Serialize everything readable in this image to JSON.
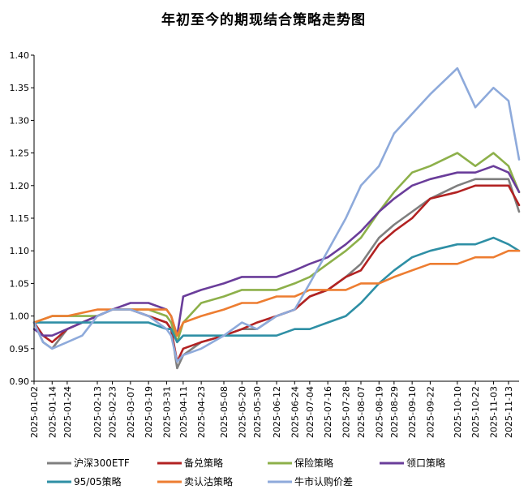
{
  "chart_data": {
    "type": "line",
    "title": "年初至今的期现结合策略走势图",
    "xlabel": "",
    "ylabel": "",
    "ylim": [
      0.9,
      1.4
    ],
    "yticks": [
      "0.90",
      "0.95",
      "1.00",
      "1.05",
      "1.10",
      "1.15",
      "1.20",
      "1.25",
      "1.30",
      "1.35",
      "1.40"
    ],
    "x_range": [
      "2025-01-02",
      "2025-11-20"
    ],
    "xticks": [
      "2025-01-02",
      "2025-01-14",
      "2025-01-24",
      "2025-02-13",
      "2025-02-23",
      "2025-03-07",
      "2025-03-19",
      "2025-03-31",
      "2025-04-11",
      "2025-04-23",
      "2025-05-08",
      "2025-05-20",
      "2025-05-30",
      "2025-06-12",
      "2025-06-24",
      "2025-07-04",
      "2025-07-16",
      "2025-07-28",
      "2025-08-07",
      "2025-08-19",
      "2025-08-29",
      "2025-09-10",
      "2025-09-22",
      "2025-10-10",
      "2025-10-22",
      "2025-11-03",
      "2025-11-13"
    ],
    "grid": false,
    "legend_position": "bottom",
    "series": [
      {
        "name": "沪深300ETF",
        "color": "#7f7f7f",
        "values": [
          [
            "2025-01-02",
            0.99
          ],
          [
            "2025-01-08",
            0.96
          ],
          [
            "2025-01-14",
            0.95
          ],
          [
            "2025-01-24",
            0.98
          ],
          [
            "2025-02-03",
            0.99
          ],
          [
            "2025-02-13",
            1.0
          ],
          [
            "2025-02-23",
            1.01
          ],
          [
            "2025-03-07",
            1.01
          ],
          [
            "2025-03-19",
            1.0
          ],
          [
            "2025-03-31",
            0.99
          ],
          [
            "2025-04-03",
            0.98
          ],
          [
            "2025-04-07",
            0.92
          ],
          [
            "2025-04-11",
            0.94
          ],
          [
            "2025-04-23",
            0.96
          ],
          [
            "2025-05-08",
            0.97
          ],
          [
            "2025-05-20",
            0.98
          ],
          [
            "2025-05-30",
            0.98
          ],
          [
            "2025-06-12",
            1.0
          ],
          [
            "2025-06-24",
            1.01
          ],
          [
            "2025-07-04",
            1.03
          ],
          [
            "2025-07-16",
            1.04
          ],
          [
            "2025-07-28",
            1.06
          ],
          [
            "2025-08-07",
            1.08
          ],
          [
            "2025-08-19",
            1.12
          ],
          [
            "2025-08-29",
            1.14
          ],
          [
            "2025-09-10",
            1.16
          ],
          [
            "2025-09-22",
            1.18
          ],
          [
            "2025-10-10",
            1.2
          ],
          [
            "2025-10-22",
            1.21
          ],
          [
            "2025-11-03",
            1.21
          ],
          [
            "2025-11-13",
            1.21
          ],
          [
            "2025-11-20",
            1.16
          ]
        ]
      },
      {
        "name": "备兑策略",
        "color": "#b22222",
        "values": [
          [
            "2025-01-02",
            0.99
          ],
          [
            "2025-01-08",
            0.97
          ],
          [
            "2025-01-14",
            0.96
          ],
          [
            "2025-01-24",
            0.98
          ],
          [
            "2025-02-03",
            0.99
          ],
          [
            "2025-02-13",
            1.0
          ],
          [
            "2025-02-23",
            1.01
          ],
          [
            "2025-03-07",
            1.01
          ],
          [
            "2025-03-19",
            1.0
          ],
          [
            "2025-03-31",
            0.99
          ],
          [
            "2025-04-03",
            0.98
          ],
          [
            "2025-04-07",
            0.93
          ],
          [
            "2025-04-11",
            0.95
          ],
          [
            "2025-04-23",
            0.96
          ],
          [
            "2025-05-08",
            0.97
          ],
          [
            "2025-05-20",
            0.98
          ],
          [
            "2025-05-30",
            0.99
          ],
          [
            "2025-06-12",
            1.0
          ],
          [
            "2025-06-24",
            1.01
          ],
          [
            "2025-07-04",
            1.03
          ],
          [
            "2025-07-16",
            1.04
          ],
          [
            "2025-07-28",
            1.06
          ],
          [
            "2025-08-07",
            1.07
          ],
          [
            "2025-08-19",
            1.11
          ],
          [
            "2025-08-29",
            1.13
          ],
          [
            "2025-09-10",
            1.15
          ],
          [
            "2025-09-22",
            1.18
          ],
          [
            "2025-10-10",
            1.19
          ],
          [
            "2025-10-22",
            1.2
          ],
          [
            "2025-11-03",
            1.2
          ],
          [
            "2025-11-13",
            1.2
          ],
          [
            "2025-11-20",
            1.17
          ]
        ]
      },
      {
        "name": "保险策略",
        "color": "#8db04a",
        "values": [
          [
            "2025-01-02",
            0.99
          ],
          [
            "2025-01-14",
            1.0
          ],
          [
            "2025-01-24",
            1.0
          ],
          [
            "2025-02-13",
            1.0
          ],
          [
            "2025-02-23",
            1.01
          ],
          [
            "2025-03-07",
            1.01
          ],
          [
            "2025-03-19",
            1.01
          ],
          [
            "2025-03-31",
            1.0
          ],
          [
            "2025-04-03",
            0.99
          ],
          [
            "2025-04-07",
            0.96
          ],
          [
            "2025-04-11",
            0.99
          ],
          [
            "2025-04-23",
            1.02
          ],
          [
            "2025-05-08",
            1.03
          ],
          [
            "2025-05-20",
            1.04
          ],
          [
            "2025-05-30",
            1.04
          ],
          [
            "2025-06-12",
            1.04
          ],
          [
            "2025-06-24",
            1.05
          ],
          [
            "2025-07-04",
            1.06
          ],
          [
            "2025-07-16",
            1.08
          ],
          [
            "2025-07-28",
            1.1
          ],
          [
            "2025-08-07",
            1.12
          ],
          [
            "2025-08-19",
            1.16
          ],
          [
            "2025-08-29",
            1.19
          ],
          [
            "2025-09-10",
            1.22
          ],
          [
            "2025-09-22",
            1.23
          ],
          [
            "2025-10-10",
            1.25
          ],
          [
            "2025-10-22",
            1.23
          ],
          [
            "2025-11-03",
            1.25
          ],
          [
            "2025-11-13",
            1.23
          ],
          [
            "2025-11-20",
            1.19
          ]
        ]
      },
      {
        "name": "领口策略",
        "color": "#6a3d9a",
        "values": [
          [
            "2025-01-02",
            0.98
          ],
          [
            "2025-01-08",
            0.97
          ],
          [
            "2025-01-14",
            0.97
          ],
          [
            "2025-01-24",
            0.98
          ],
          [
            "2025-02-13",
            1.0
          ],
          [
            "2025-02-23",
            1.01
          ],
          [
            "2025-03-07",
            1.02
          ],
          [
            "2025-03-19",
            1.02
          ],
          [
            "2025-03-31",
            1.01
          ],
          [
            "2025-04-03",
            1.0
          ],
          [
            "2025-04-07",
            0.97
          ],
          [
            "2025-04-11",
            1.03
          ],
          [
            "2025-04-23",
            1.04
          ],
          [
            "2025-05-08",
            1.05
          ],
          [
            "2025-05-20",
            1.06
          ],
          [
            "2025-05-30",
            1.06
          ],
          [
            "2025-06-12",
            1.06
          ],
          [
            "2025-06-24",
            1.07
          ],
          [
            "2025-07-04",
            1.08
          ],
          [
            "2025-07-16",
            1.09
          ],
          [
            "2025-07-28",
            1.11
          ],
          [
            "2025-08-07",
            1.13
          ],
          [
            "2025-08-19",
            1.16
          ],
          [
            "2025-08-29",
            1.18
          ],
          [
            "2025-09-10",
            1.2
          ],
          [
            "2025-09-22",
            1.21
          ],
          [
            "2025-10-10",
            1.22
          ],
          [
            "2025-10-22",
            1.22
          ],
          [
            "2025-11-03",
            1.23
          ],
          [
            "2025-11-13",
            1.22
          ],
          [
            "2025-11-20",
            1.19
          ]
        ]
      },
      {
        "name": "95/05策略",
        "color": "#2e8fa5",
        "values": [
          [
            "2025-01-02",
            0.99
          ],
          [
            "2025-01-14",
            0.99
          ],
          [
            "2025-01-24",
            0.99
          ],
          [
            "2025-02-13",
            0.99
          ],
          [
            "2025-02-23",
            0.99
          ],
          [
            "2025-03-07",
            0.99
          ],
          [
            "2025-03-19",
            0.99
          ],
          [
            "2025-03-31",
            0.98
          ],
          [
            "2025-04-03",
            0.98
          ],
          [
            "2025-04-07",
            0.96
          ],
          [
            "2025-04-11",
            0.97
          ],
          [
            "2025-04-23",
            0.97
          ],
          [
            "2025-05-08",
            0.97
          ],
          [
            "2025-05-20",
            0.97
          ],
          [
            "2025-05-30",
            0.97
          ],
          [
            "2025-06-12",
            0.97
          ],
          [
            "2025-06-24",
            0.98
          ],
          [
            "2025-07-04",
            0.98
          ],
          [
            "2025-07-16",
            0.99
          ],
          [
            "2025-07-28",
            1.0
          ],
          [
            "2025-08-07",
            1.02
          ],
          [
            "2025-08-19",
            1.05
          ],
          [
            "2025-08-29",
            1.07
          ],
          [
            "2025-09-10",
            1.09
          ],
          [
            "2025-09-22",
            1.1
          ],
          [
            "2025-10-10",
            1.11
          ],
          [
            "2025-10-22",
            1.11
          ],
          [
            "2025-11-03",
            1.12
          ],
          [
            "2025-11-13",
            1.11
          ],
          [
            "2025-11-20",
            1.1
          ]
        ]
      },
      {
        "name": "卖认沽策略",
        "color": "#ed7d31",
        "values": [
          [
            "2025-01-02",
            0.99
          ],
          [
            "2025-01-14",
            1.0
          ],
          [
            "2025-01-24",
            1.0
          ],
          [
            "2025-02-13",
            1.01
          ],
          [
            "2025-02-23",
            1.01
          ],
          [
            "2025-03-07",
            1.01
          ],
          [
            "2025-03-19",
            1.01
          ],
          [
            "2025-03-31",
            1.01
          ],
          [
            "2025-04-03",
            1.0
          ],
          [
            "2025-04-07",
            0.97
          ],
          [
            "2025-04-11",
            0.99
          ],
          [
            "2025-04-23",
            1.0
          ],
          [
            "2025-05-08",
            1.01
          ],
          [
            "2025-05-20",
            1.02
          ],
          [
            "2025-05-30",
            1.02
          ],
          [
            "2025-06-12",
            1.03
          ],
          [
            "2025-06-24",
            1.03
          ],
          [
            "2025-07-04",
            1.04
          ],
          [
            "2025-07-16",
            1.04
          ],
          [
            "2025-07-28",
            1.04
          ],
          [
            "2025-08-07",
            1.05
          ],
          [
            "2025-08-19",
            1.05
          ],
          [
            "2025-08-29",
            1.06
          ],
          [
            "2025-09-10",
            1.07
          ],
          [
            "2025-09-22",
            1.08
          ],
          [
            "2025-10-10",
            1.08
          ],
          [
            "2025-10-22",
            1.09
          ],
          [
            "2025-11-03",
            1.09
          ],
          [
            "2025-11-13",
            1.1
          ],
          [
            "2025-11-20",
            1.1
          ]
        ]
      },
      {
        "name": "牛市认购价差",
        "color": "#8eaadb",
        "values": [
          [
            "2025-01-02",
            0.99
          ],
          [
            "2025-01-08",
            0.96
          ],
          [
            "2025-01-14",
            0.95
          ],
          [
            "2025-01-24",
            0.96
          ],
          [
            "2025-02-03",
            0.97
          ],
          [
            "2025-02-13",
            1.0
          ],
          [
            "2025-02-23",
            1.01
          ],
          [
            "2025-03-07",
            1.01
          ],
          [
            "2025-03-19",
            1.0
          ],
          [
            "2025-03-31",
            0.98
          ],
          [
            "2025-04-03",
            0.97
          ],
          [
            "2025-04-07",
            0.93
          ],
          [
            "2025-04-11",
            0.94
          ],
          [
            "2025-04-23",
            0.95
          ],
          [
            "2025-05-08",
            0.97
          ],
          [
            "2025-05-20",
            0.99
          ],
          [
            "2025-05-30",
            0.98
          ],
          [
            "2025-06-12",
            1.0
          ],
          [
            "2025-06-24",
            1.01
          ],
          [
            "2025-07-04",
            1.05
          ],
          [
            "2025-07-16",
            1.1
          ],
          [
            "2025-07-28",
            1.15
          ],
          [
            "2025-08-07",
            1.2
          ],
          [
            "2025-08-19",
            1.23
          ],
          [
            "2025-08-29",
            1.28
          ],
          [
            "2025-09-10",
            1.31
          ],
          [
            "2025-09-22",
            1.34
          ],
          [
            "2025-10-10",
            1.38
          ],
          [
            "2025-10-22",
            1.32
          ],
          [
            "2025-11-03",
            1.35
          ],
          [
            "2025-11-13",
            1.33
          ],
          [
            "2025-11-20",
            1.24
          ]
        ]
      }
    ]
  }
}
